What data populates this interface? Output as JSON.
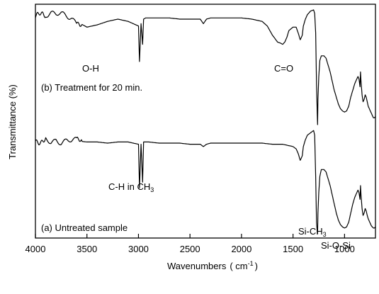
{
  "chart_data": {
    "type": "line",
    "title": "",
    "xlabel": "Wavenumbers",
    "xlabel_unit_open": "( cm",
    "xlabel_unit_sup": "-1",
    "xlabel_unit_close": ")",
    "ylabel": "Transmittance (%)",
    "xlim": [
      4000,
      700
    ],
    "x_reversed": true,
    "xticks": [
      4000,
      3500,
      3000,
      2500,
      2000,
      1500,
      1000
    ],
    "yticks_shown": false,
    "grid": false,
    "series": [
      {
        "name": "(b) Treatment for 20 min.",
        "x": [
          4000,
          3900,
          3850,
          3800,
          3750,
          3700,
          3650,
          3600,
          3500,
          3400,
          3300,
          3200,
          3100,
          3050,
          3000,
          2990,
          2975,
          2960,
          2950,
          2930,
          2900,
          2800,
          2700,
          2600,
          2500,
          2400,
          2370,
          2340,
          2300,
          2200,
          2100,
          2000,
          1900,
          1800,
          1750,
          1700,
          1650,
          1620,
          1600,
          1580,
          1560,
          1540,
          1500,
          1470,
          1450,
          1430,
          1410,
          1400,
          1380,
          1360,
          1330,
          1300,
          1290,
          1280,
          1272,
          1265,
          1262,
          1258,
          1250,
          1240,
          1225,
          1200,
          1180,
          1160,
          1140,
          1120,
          1100,
          1080,
          1060,
          1040,
          1020,
          1000,
          980,
          960,
          940,
          920,
          900,
          880,
          870,
          860,
          850,
          845,
          840,
          830,
          820,
          810,
          800,
          790,
          780,
          770,
          760,
          750,
          740,
          730,
          720,
          710,
          700
        ],
        "y": [
          0.95,
          0.96,
          0.97,
          0.95,
          0.96,
          0.95,
          0.94,
          0.9,
          0.85,
          0.87,
          0.9,
          0.92,
          0.9,
          0.88,
          0.86,
          0.55,
          0.88,
          0.7,
          0.92,
          0.93,
          0.93,
          0.93,
          0.93,
          0.92,
          0.92,
          0.92,
          0.88,
          0.92,
          0.93,
          0.93,
          0.93,
          0.93,
          0.92,
          0.9,
          0.86,
          0.78,
          0.72,
          0.71,
          0.7,
          0.72,
          0.76,
          0.82,
          0.85,
          0.85,
          0.8,
          0.74,
          0.78,
          0.86,
          0.92,
          0.96,
          0.99,
          1.0,
          0.97,
          0.8,
          0.35,
          0.1,
          0.0,
          0.22,
          0.42,
          0.56,
          0.6,
          0.6,
          0.58,
          0.52,
          0.46,
          0.38,
          0.3,
          0.24,
          0.18,
          0.14,
          0.12,
          0.11,
          0.12,
          0.16,
          0.24,
          0.3,
          0.36,
          0.4,
          0.42,
          0.4,
          0.33,
          0.46,
          0.38,
          0.26,
          0.2,
          0.22,
          0.26,
          0.24,
          0.2,
          0.16,
          0.14,
          0.12,
          0.1,
          0.08,
          0.06,
          0.06,
          0.07
        ]
      },
      {
        "name": "(a) Untreated sample",
        "x": [
          4000,
          3900,
          3850,
          3800,
          3750,
          3700,
          3650,
          3600,
          3500,
          3400,
          3300,
          3200,
          3100,
          3050,
          3000,
          2990,
          2975,
          2960,
          2950,
          2930,
          2900,
          2800,
          2700,
          2600,
          2500,
          2400,
          2370,
          2340,
          2300,
          2200,
          2100,
          2000,
          1900,
          1800,
          1700,
          1600,
          1500,
          1470,
          1450,
          1430,
          1410,
          1400,
          1380,
          1360,
          1330,
          1300,
          1290,
          1280,
          1272,
          1265,
          1262,
          1258,
          1250,
          1240,
          1225,
          1200,
          1180,
          1160,
          1140,
          1120,
          1100,
          1080,
          1060,
          1040,
          1020,
          1000,
          980,
          960,
          940,
          920,
          900,
          880,
          870,
          860,
          850,
          845,
          840,
          830,
          820,
          810,
          800,
          790,
          780,
          770,
          760,
          750,
          740,
          730,
          720,
          710,
          700
        ],
        "y": [
          0.8,
          0.82,
          0.8,
          0.83,
          0.8,
          0.81,
          0.8,
          0.81,
          0.8,
          0.8,
          0.79,
          0.8,
          0.8,
          0.79,
          0.78,
          0.4,
          0.78,
          0.45,
          0.8,
          0.8,
          0.8,
          0.79,
          0.79,
          0.79,
          0.78,
          0.78,
          0.76,
          0.78,
          0.79,
          0.79,
          0.79,
          0.79,
          0.79,
          0.79,
          0.78,
          0.78,
          0.76,
          0.74,
          0.7,
          0.64,
          0.68,
          0.76,
          0.82,
          0.86,
          0.88,
          0.9,
          0.86,
          0.5,
          0.1,
          0.02,
          0.0,
          0.18,
          0.36,
          0.5,
          0.56,
          0.56,
          0.54,
          0.48,
          0.42,
          0.34,
          0.26,
          0.18,
          0.12,
          0.08,
          0.06,
          0.05,
          0.06,
          0.1,
          0.18,
          0.26,
          0.32,
          0.36,
          0.38,
          0.36,
          0.3,
          0.42,
          0.34,
          0.22,
          0.16,
          0.18,
          0.22,
          0.2,
          0.16,
          0.13,
          0.11,
          0.09,
          0.07,
          0.06,
          0.05,
          0.05,
          0.06
        ]
      }
    ],
    "annotations": {
      "b_label": "(b) Treatment for 20 min.",
      "a_label": "(a) Untreated sample",
      "oh": "O-H",
      "co": "C=O",
      "ch_prefix": "C-H in CH",
      "ch_sub": "3",
      "sich_prefix": "Si-CH",
      "sich_sub": "3",
      "sios": "Si-O-Si"
    }
  }
}
